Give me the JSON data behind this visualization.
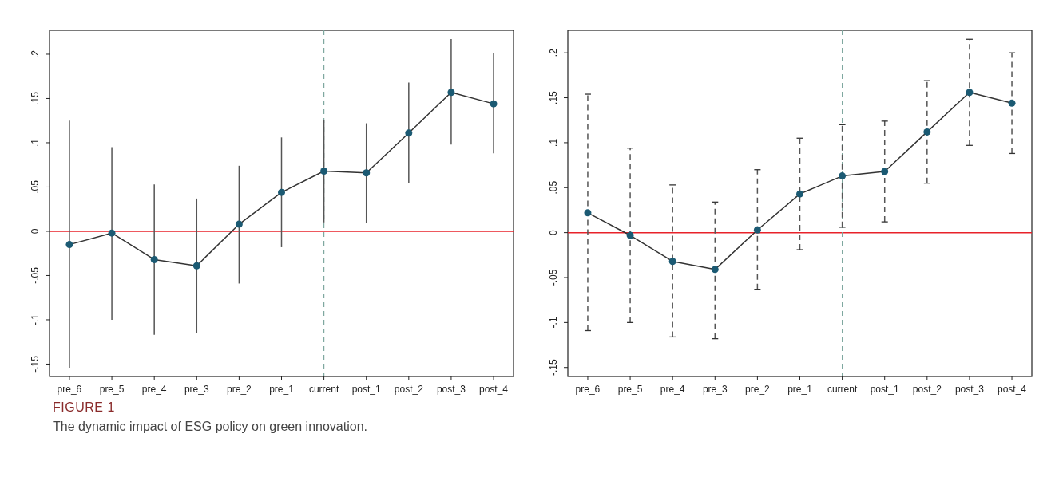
{
  "chart_data": [
    {
      "type": "line",
      "title": "FIGURE 1",
      "subtitle": "The dynamic impact of ESG policy on green innovation.",
      "categories": [
        "pre_6",
        "pre_5",
        "pre_4",
        "pre_3",
        "pre_2",
        "pre_1",
        "current",
        "post_1",
        "post_2",
        "post_3",
        "post_4"
      ],
      "series": [
        {
          "color": "#1b5a73",
          "values": [
            -0.015,
            -0.002,
            -0.032,
            -0.039,
            0.008,
            0.044,
            0.068,
            0.066,
            0.111,
            0.157,
            0.144
          ],
          "errors": [
            [
              -0.154,
              0.125
            ],
            [
              -0.1,
              0.095
            ],
            [
              -0.117,
              0.053
            ],
            [
              -0.115,
              0.037
            ],
            [
              -0.059,
              0.074
            ],
            [
              -0.018,
              0.106
            ],
            [
              0.01,
              0.126
            ],
            [
              0.009,
              0.122
            ],
            [
              0.054,
              0.168
            ],
            [
              0.098,
              0.217
            ],
            [
              0.088,
              0.201
            ]
          ]
        }
      ],
      "ylim": [
        -0.164,
        0.227
      ],
      "yticks": [
        {
          "value": -0.15,
          "label": "-.15"
        },
        {
          "value": -0.1,
          "label": "-.1"
        },
        {
          "value": -0.05,
          "label": "-.05"
        },
        {
          "value": 0,
          "label": "0"
        },
        {
          "value": 0.05,
          "label": ".05"
        },
        {
          "value": 0.1,
          "label": ".1"
        },
        {
          "value": 0.15,
          "label": ".15"
        },
        {
          "value": 0.2,
          "label": ".2"
        }
      ],
      "marker": "circle",
      "grid": false,
      "ref_lines": [
        {
          "axis": "y",
          "value": 0,
          "color": "#e8222a",
          "line_style": "solid"
        },
        {
          "axis": "x",
          "value": "current",
          "color": "#7fa8a0",
          "line_style": "dashed"
        }
      ]
    },
    {
      "type": "line",
      "categories": [
        "pre_6",
        "pre_5",
        "pre_4",
        "pre_3",
        "pre_2",
        "pre_1",
        "current",
        "post_1",
        "post_2",
        "post_3",
        "post_4"
      ],
      "series": [
        {
          "color": "#1b5a73",
          "values": [
            0.022,
            -0.003,
            -0.032,
            -0.041,
            0.003,
            0.043,
            0.063,
            0.068,
            0.112,
            0.156,
            0.144
          ],
          "errors": [
            [
              -0.109,
              0.154
            ],
            [
              -0.1,
              0.094
            ],
            [
              -0.116,
              0.053
            ],
            [
              -0.118,
              0.034
            ],
            [
              -0.063,
              0.07
            ],
            [
              -0.019,
              0.105
            ],
            [
              0.006,
              0.12
            ],
            [
              0.012,
              0.124
            ],
            [
              0.055,
              0.169
            ],
            [
              0.097,
              0.215
            ],
            [
              0.088,
              0.2
            ]
          ]
        }
      ],
      "ylim": [
        -0.16,
        0.225
      ],
      "yticks": [
        {
          "value": -0.15,
          "label": "-.15"
        },
        {
          "value": -0.1,
          "label": "-.1"
        },
        {
          "value": -0.05,
          "label": "-.05"
        },
        {
          "value": 0,
          "label": "0"
        },
        {
          "value": 0.05,
          "label": ".05"
        },
        {
          "value": 0.1,
          "label": ".1"
        },
        {
          "value": 0.15,
          "label": ".15"
        },
        {
          "value": 0.2,
          "label": ".2"
        }
      ],
      "marker": "circle",
      "grid": false,
      "ref_lines": [
        {
          "axis": "y",
          "value": 0,
          "color": "#e8222a",
          "line_style": "solid"
        },
        {
          "axis": "x",
          "value": "current",
          "color": "#7fa8a0",
          "line_style": "dashed"
        }
      ]
    }
  ]
}
